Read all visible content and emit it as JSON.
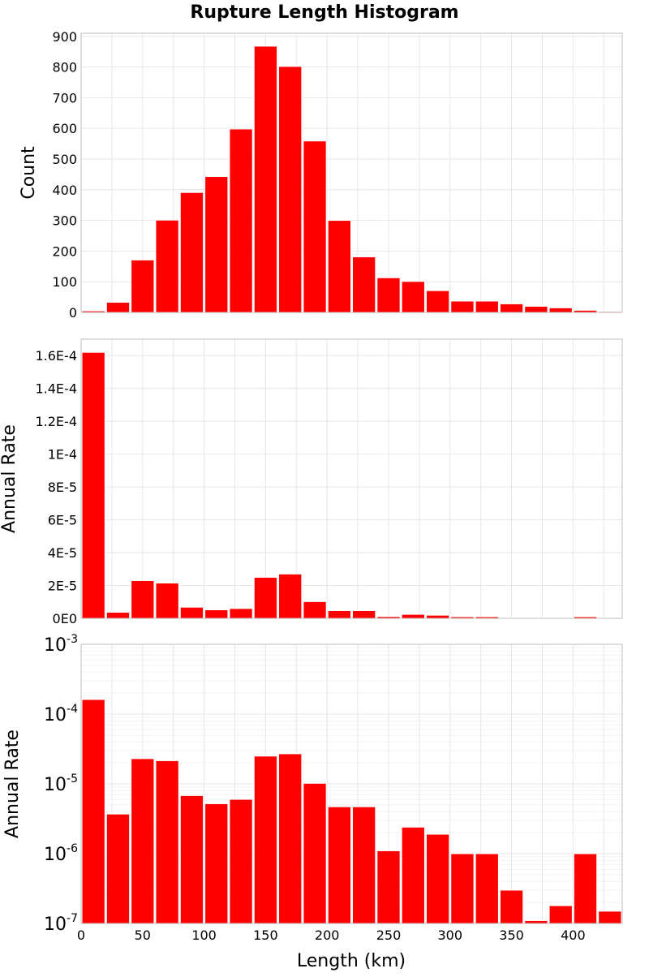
{
  "chart_data": {
    "type": "bar",
    "title": "Rupture Length Histogram",
    "xlabel": "Length (km)",
    "bin_width": 20,
    "bin_starts": [
      0,
      20,
      40,
      60,
      80,
      100,
      120,
      140,
      160,
      180,
      200,
      220,
      240,
      260,
      280,
      300,
      320,
      340,
      360,
      380,
      400,
      420
    ],
    "colors": {
      "bar": "#ff0000",
      "grid": "#e6e6e6",
      "frame": "#bdbdbd"
    },
    "x_axis": {
      "xlim": [
        0,
        440
      ],
      "ticks": [
        0,
        50,
        100,
        150,
        200,
        250,
        300,
        350,
        400
      ],
      "tick_labels": [
        "0",
        "50",
        "100",
        "150",
        "200",
        "250",
        "300",
        "350",
        "400"
      ]
    },
    "panels": [
      {
        "ylabel": "Count",
        "scale": "linear",
        "ylim": [
          0,
          910
        ],
        "ticks": [
          0,
          100,
          200,
          300,
          400,
          500,
          600,
          700,
          800,
          900
        ],
        "tick_labels": [
          "0",
          "100",
          "200",
          "300",
          "400",
          "500",
          "600",
          "700",
          "800",
          "900"
        ],
        "values": [
          5,
          33,
          171,
          301,
          391,
          443,
          598,
          868,
          802,
          559,
          300,
          181,
          113,
          101,
          71,
          37,
          37,
          28,
          20,
          15,
          7,
          3
        ]
      },
      {
        "ylabel": "Annual Rate",
        "scale": "linear",
        "ylim": [
          0,
          0.00017
        ],
        "ticks": [
          0,
          2e-05,
          4e-05,
          6e-05,
          8e-05,
          0.0001,
          0.00012,
          0.00014,
          0.00016
        ],
        "tick_labels": [
          "0E0",
          "2E-5",
          "4E-5",
          "6E-5",
          "8E-5",
          "1E-4",
          "1.2E-4",
          "1.4E-4",
          "1.6E-4"
        ],
        "values": [
          0.000162,
          3.7e-06,
          2.3e-05,
          2.15e-05,
          6.8e-06,
          5.2e-06,
          6e-06,
          2.5e-05,
          2.7e-05,
          1.02e-05,
          4.7e-06,
          4.7e-06,
          1.1e-06,
          2.4e-06,
          1.9e-06,
          1e-06,
          1e-06,
          3e-07,
          1.1e-07,
          1.8e-07,
          1e-06,
          1.5e-07
        ]
      },
      {
        "ylabel": "Annual Rate",
        "scale": "log",
        "ylim": [
          1e-07,
          0.001
        ],
        "ticks": [
          1e-07,
          1e-06,
          1e-05,
          0.0001,
          0.001
        ],
        "tick_labels": [
          {
            "base": "10",
            "exp": "-7"
          },
          {
            "base": "10",
            "exp": "-6"
          },
          {
            "base": "10",
            "exp": "-5"
          },
          {
            "base": "10",
            "exp": "-4"
          },
          {
            "base": "10",
            "exp": "-3"
          }
        ],
        "values": [
          0.000162,
          3.7e-06,
          2.3e-05,
          2.15e-05,
          6.8e-06,
          5.2e-06,
          6e-06,
          2.5e-05,
          2.7e-05,
          1.02e-05,
          4.7e-06,
          4.7e-06,
          1.1e-06,
          2.4e-06,
          1.9e-06,
          1e-06,
          1e-06,
          3e-07,
          1.1e-07,
          1.8e-07,
          1e-06,
          1.5e-07
        ]
      }
    ]
  }
}
